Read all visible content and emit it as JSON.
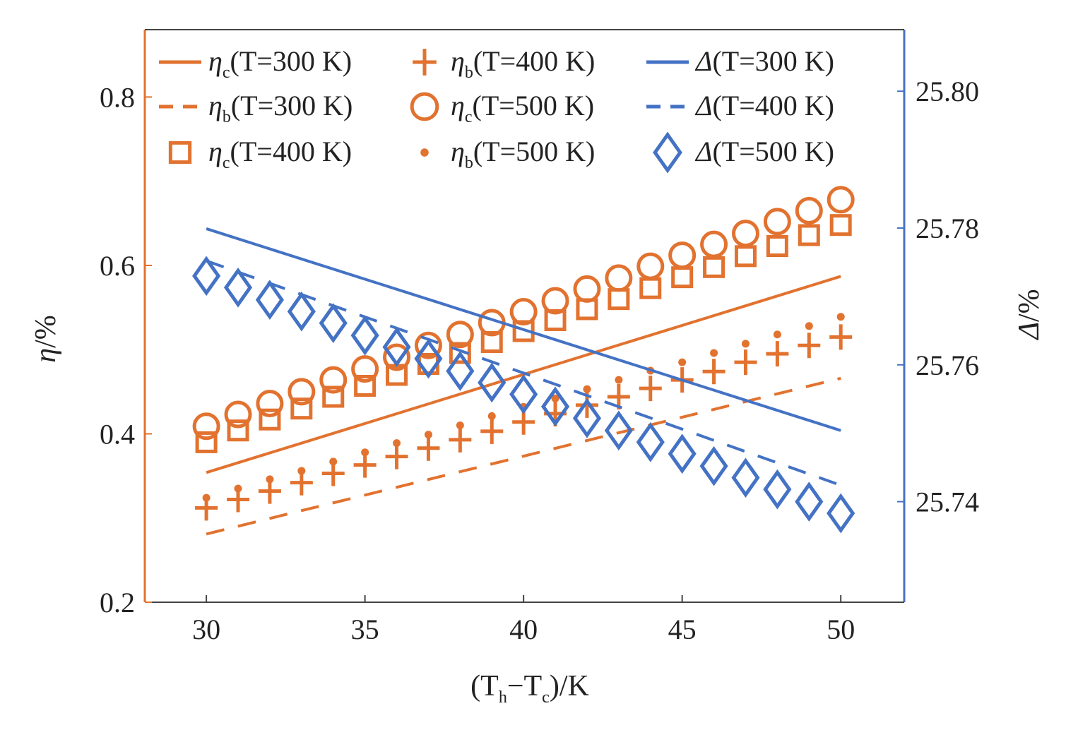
{
  "chart_data": {
    "type": "line",
    "xlabel": {
      "open": "(T",
      "sub1": "h",
      "mid": "−T",
      "sub2": "c",
      "close": ")/K"
    },
    "ylabel_left": {
      "symbol": "η",
      "unit": "/%"
    },
    "ylabel_right": {
      "symbol": "Δ",
      "unit": "/%"
    },
    "xlim": [
      28.06,
      52.0
    ],
    "ylim_left": [
      0.2,
      0.88
    ],
    "ylim_right": [
      25.7253,
      25.809
    ],
    "xticks": [
      30,
      35,
      40,
      45,
      50
    ],
    "yticks_left": [
      "0.2",
      "0.4",
      "0.6",
      "0.8"
    ],
    "yticks_right": [
      "25.74",
      "25.76",
      "25.78",
      "25.80"
    ],
    "grid": false,
    "legend_placement": "top",
    "colors": {
      "orange": "#E2722F",
      "blue": "#4472C4"
    },
    "x": [
      30,
      31,
      32,
      33,
      34,
      35,
      36,
      37,
      38,
      39,
      40,
      41,
      42,
      43,
      44,
      45,
      46,
      47,
      48,
      49,
      50
    ],
    "series": [
      {
        "key": "etac300",
        "axis": "left",
        "style": "solid",
        "color": "#E2722F",
        "legend": {
          "symbol": "η",
          "sub": "c",
          "rest": "(T=300 K)"
        },
        "x": [
          30,
          50
        ],
        "values": [
          0.354,
          0.587
        ]
      },
      {
        "key": "etab300",
        "axis": "left",
        "style": "dashed",
        "color": "#E2722F",
        "legend": {
          "symbol": "η",
          "sub": "b",
          "rest": "(T=300 K)"
        },
        "x": [
          30,
          50
        ],
        "values": [
          0.281,
          0.466
        ]
      },
      {
        "key": "etac400",
        "axis": "left",
        "style": "square",
        "color": "#E2722F",
        "legend": {
          "symbol": "η",
          "sub": "c",
          "rest": "(T=400 K)"
        },
        "values": [
          0.39,
          0.404,
          0.417,
          0.43,
          0.444,
          0.457,
          0.47,
          0.483,
          0.496,
          0.509,
          0.522,
          0.535,
          0.548,
          0.56,
          0.573,
          0.586,
          0.598,
          0.611,
          0.623,
          0.636,
          0.648
        ]
      },
      {
        "key": "etab400",
        "axis": "left",
        "style": "plus",
        "color": "#E2722F",
        "legend": {
          "symbol": "η",
          "sub": "b",
          "rest": "(T=400 K)"
        },
        "values": [
          0.312,
          0.322,
          0.332,
          0.342,
          0.353,
          0.363,
          0.373,
          0.383,
          0.393,
          0.403,
          0.414,
          0.424,
          0.434,
          0.444,
          0.454,
          0.464,
          0.474,
          0.485,
          0.495,
          0.505,
          0.515
        ]
      },
      {
        "key": "etac500",
        "axis": "left",
        "style": "circle",
        "color": "#E2722F",
        "legend": {
          "symbol": "η",
          "sub": "c",
          "rest": "(T=500 K)"
        },
        "values": [
          0.409,
          0.423,
          0.436,
          0.45,
          0.464,
          0.477,
          0.491,
          0.505,
          0.518,
          0.532,
          0.545,
          0.558,
          0.572,
          0.585,
          0.599,
          0.612,
          0.625,
          0.638,
          0.652,
          0.665,
          0.678
        ]
      },
      {
        "key": "etab500",
        "axis": "left",
        "style": "dot",
        "color": "#E2722F",
        "legend": {
          "symbol": "η",
          "sub": "b",
          "rest": "(T=500 K)"
        },
        "values": [
          0.324,
          0.335,
          0.346,
          0.356,
          0.367,
          0.378,
          0.389,
          0.399,
          0.41,
          0.421,
          0.432,
          0.442,
          0.453,
          0.464,
          0.475,
          0.485,
          0.496,
          0.507,
          0.518,
          0.528,
          0.539
        ]
      },
      {
        "key": "delta300",
        "axis": "right",
        "style": "solid",
        "color": "#4472C4",
        "legend": {
          "symbol": "Δ",
          "sub": "",
          "rest": "(T=300 K)"
        },
        "x": [
          30,
          50
        ],
        "values": [
          25.7799,
          25.7504
        ]
      },
      {
        "key": "delta400",
        "axis": "right",
        "style": "dashed",
        "color": "#4472C4",
        "legend": {
          "symbol": "Δ",
          "sub": "",
          "rest": "(T=400 K)"
        },
        "x": [
          30,
          50
        ],
        "values": [
          25.7752,
          25.7424
        ]
      },
      {
        "key": "delta500",
        "axis": "right",
        "style": "diamond",
        "color": "#4472C4",
        "legend": {
          "symbol": "Δ",
          "sub": "",
          "rest": "(T=500 K)"
        },
        "values": [
          25.773,
          25.7713,
          25.7695,
          25.7678,
          25.7661,
          25.7643,
          25.7626,
          25.7609,
          25.7591,
          25.7574,
          25.7557,
          25.7539,
          25.7522,
          25.7504,
          25.7487,
          25.747,
          25.7452,
          25.7435,
          25.7418,
          25.74,
          25.7383
        ]
      }
    ]
  }
}
